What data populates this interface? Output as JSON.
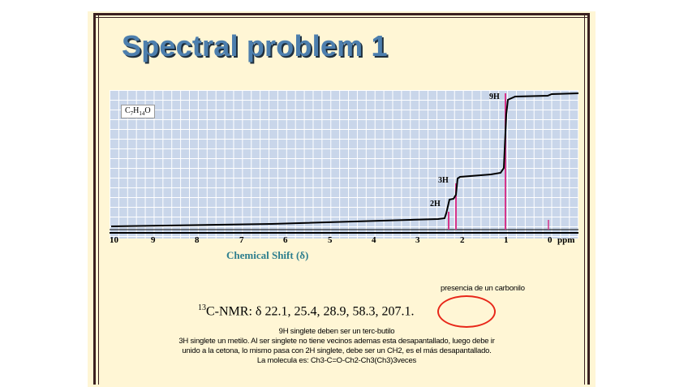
{
  "slide": {
    "title": "Spectral problem 1",
    "formula_parts": [
      "C",
      "7",
      "H",
      "14",
      "O"
    ]
  },
  "spectrum": {
    "x_axis_title": "Chemical Shift (δ)",
    "x_unit": "ppm",
    "ticks": [
      {
        "label": "10",
        "value": 10
      },
      {
        "label": "9",
        "value": 9
      },
      {
        "label": "8",
        "value": 8
      },
      {
        "label": "7",
        "value": 7
      },
      {
        "label": "6",
        "value": 6
      },
      {
        "label": "5",
        "value": 5
      },
      {
        "label": "4",
        "value": 4
      },
      {
        "label": "3",
        "value": 3
      },
      {
        "label": "2",
        "value": 2
      },
      {
        "label": "1",
        "value": 1
      },
      {
        "label": "0",
        "value": 0
      }
    ],
    "peaks": [
      {
        "label": "2H",
        "shift": 2.35
      },
      {
        "label": "3H",
        "shift": 2.15
      },
      {
        "label": "9H",
        "shift": 1.0
      }
    ],
    "colors": {
      "grid": "#c9d6ea",
      "peak": "#d6338a",
      "integral": "#000000"
    }
  },
  "annotations": {
    "carbonyl_note": "presencia de un carbonilo",
    "c13_mass": "13",
    "c13_text": "C-NMR: δ 22.1, 25.4, 28.9, 58.3, 207.1.",
    "notes": [
      "9H singlete deben ser un terc-butilo",
      "3H singlete un metilo. Al ser singlete no tiene vecinos ademas esta desapantallado, luego debe ir",
      "unido a la cetona, lo mismo pasa con 2H singlete, debe ser un CH2, es el más desapantallado.",
      "La molecula es: Ch3-C=O-Ch2-Ch3(Ch3)3veces"
    ],
    "highlight_color": "#e8281a"
  }
}
